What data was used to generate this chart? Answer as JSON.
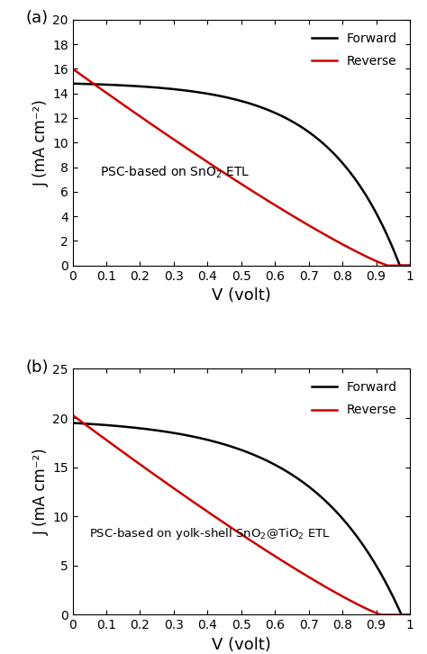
{
  "panel_a": {
    "label": "(a)",
    "ylabel": "J (mA cm⁻²)",
    "xlabel": "V (volt)",
    "annotation": "PSC-based on SnO$_2$ ETL",
    "ylim": [
      0,
      20
    ],
    "xlim": [
      0,
      1.0
    ],
    "yticks": [
      0,
      2,
      4,
      6,
      8,
      10,
      12,
      14,
      16,
      18,
      20
    ],
    "xticks": [
      0,
      0.1,
      0.2,
      0.3,
      0.4,
      0.5,
      0.6,
      0.7,
      0.8,
      0.9,
      1.0
    ],
    "forward_color": "#000000",
    "reverse_color": "#cc0000",
    "fwd_Jsc": 14.8,
    "fwd_Voc": 0.97,
    "fwd_n": 8.0,
    "rev_J0": 16.0,
    "rev_Voc": 0.935
  },
  "panel_b": {
    "label": "(b)",
    "ylabel": "J (mA cm⁻²)",
    "xlabel": "V (volt)",
    "annotation": "PSC-based on yolk-shell SnO$_2$@TiO$_2$ ETL",
    "ylim": [
      0,
      25
    ],
    "xlim": [
      0,
      1.0
    ],
    "yticks": [
      0,
      5,
      10,
      15,
      20,
      25
    ],
    "xticks": [
      0,
      0.1,
      0.2,
      0.3,
      0.4,
      0.5,
      0.6,
      0.7,
      0.8,
      0.9,
      1.0
    ],
    "forward_color": "#000000",
    "reverse_color": "#cc0000",
    "fwd_Jsc": 19.5,
    "fwd_Voc": 0.975,
    "fwd_n": 10.0,
    "rev_J0": 20.3,
    "rev_Voc": 0.915
  },
  "legend_entries": [
    "Forward",
    "Reverse"
  ],
  "background_color": "#ffffff",
  "font_size": 11,
  "label_font_size": 13,
  "line_width": 1.8
}
